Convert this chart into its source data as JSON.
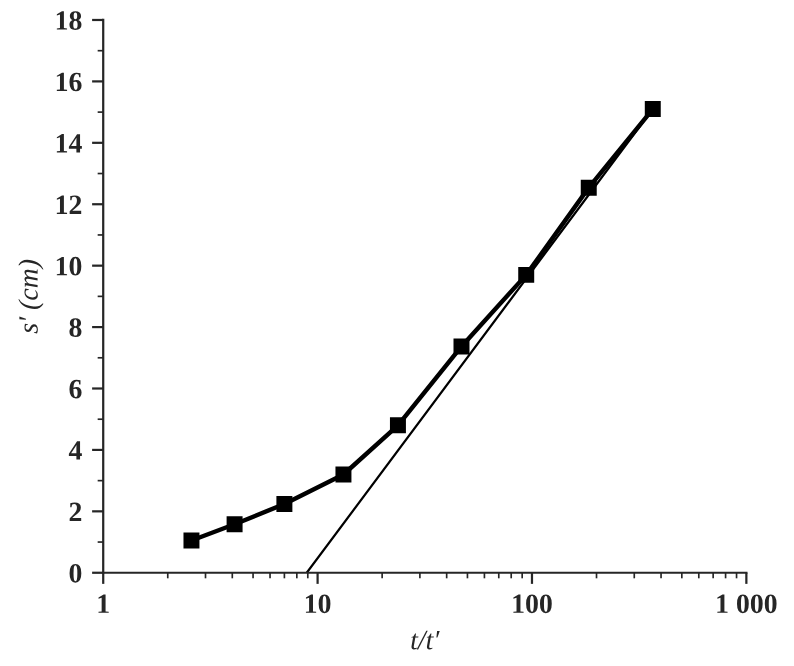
{
  "chart_data": {
    "type": "line",
    "xlabel": "t/t′",
    "ylabel": "s′ (cm)",
    "log": "x",
    "xlim": [
      1,
      1000
    ],
    "xticks": [
      1,
      10,
      100,
      {
        "value": 1000,
        "label": "1 000"
      }
    ],
    "ylim": [
      0,
      18
    ],
    "yticks": [
      0,
      2,
      4,
      6,
      8,
      10,
      12,
      14,
      16,
      18
    ],
    "grid": false,
    "series": [
      {
        "color": "#000000",
        "marker": "square",
        "x": [
          2.58,
          4.1,
          7.0,
          13.2,
          23.7,
          46.9,
          94,
          184,
          366
        ],
        "values": [
          1.05,
          1.58,
          2.24,
          3.2,
          4.8,
          7.37,
          9.7,
          12.54,
          15.1
        ]
      },
      {
        "type": "line",
        "color": "#000000",
        "marker": "none",
        "x": [
          8.9,
          366
        ],
        "values": [
          0,
          15.1
        ]
      }
    ]
  }
}
